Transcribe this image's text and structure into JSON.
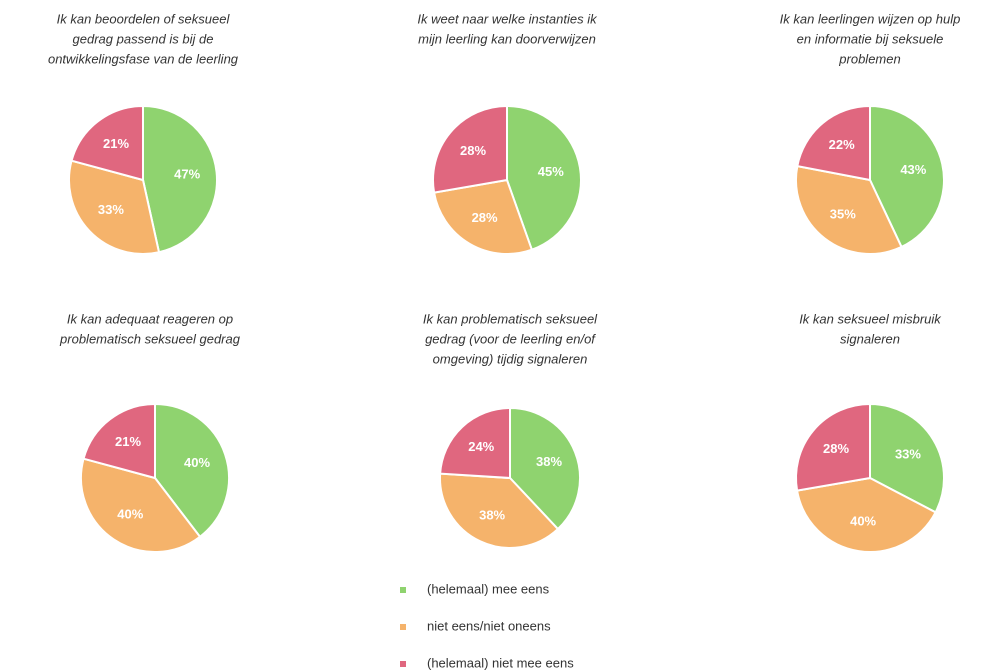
{
  "legend": {
    "categories": [
      "(helemaal) mee eens",
      "niet eens/niet oneens",
      "(helemaal) niet mee eens"
    ],
    "colors": [
      "#8fd36f",
      "#f5b36b",
      "#e0677f"
    ]
  },
  "chart_data": [
    {
      "type": "pie",
      "title": [
        "Ik kan beoordelen of seksueel",
        "gedrag passend is bij de",
        "ontwikkelingsfase van de leerling"
      ],
      "values": [
        47,
        33,
        21
      ],
      "value_labels": [
        "47%",
        "33%",
        "21%"
      ]
    },
    {
      "type": "pie",
      "title": [
        "Ik weet naar welke instanties ik",
        "mijn leerling kan doorverwijzen"
      ],
      "values": [
        45,
        28,
        28
      ],
      "value_labels": [
        "45%",
        "28%",
        "28%"
      ]
    },
    {
      "type": "pie",
      "title": [
        "Ik kan leerlingen wijzen op hulp",
        "en informatie bij seksuele",
        "problemen"
      ],
      "values": [
        43,
        35,
        22
      ],
      "value_labels": [
        "43%",
        "35%",
        "22%"
      ]
    },
    {
      "type": "pie",
      "title": [
        "Ik kan adequaat reageren op",
        "problematisch seksueel gedrag"
      ],
      "values": [
        40,
        40,
        21
      ],
      "value_labels": [
        "40%",
        "40%",
        "21%"
      ]
    },
    {
      "type": "pie",
      "title": [
        "Ik kan problematisch seksueel",
        "gedrag (voor de leerling en/of",
        "omgeving) tijdig signaleren"
      ],
      "values": [
        38,
        38,
        24
      ],
      "value_labels": [
        "38%",
        "38%",
        "24%"
      ]
    },
    {
      "type": "pie",
      "title": [
        "Ik kan seksueel misbruik",
        "signaleren"
      ],
      "values": [
        33,
        40,
        28
      ],
      "value_labels": [
        "33%",
        "40%",
        "28%"
      ]
    }
  ]
}
